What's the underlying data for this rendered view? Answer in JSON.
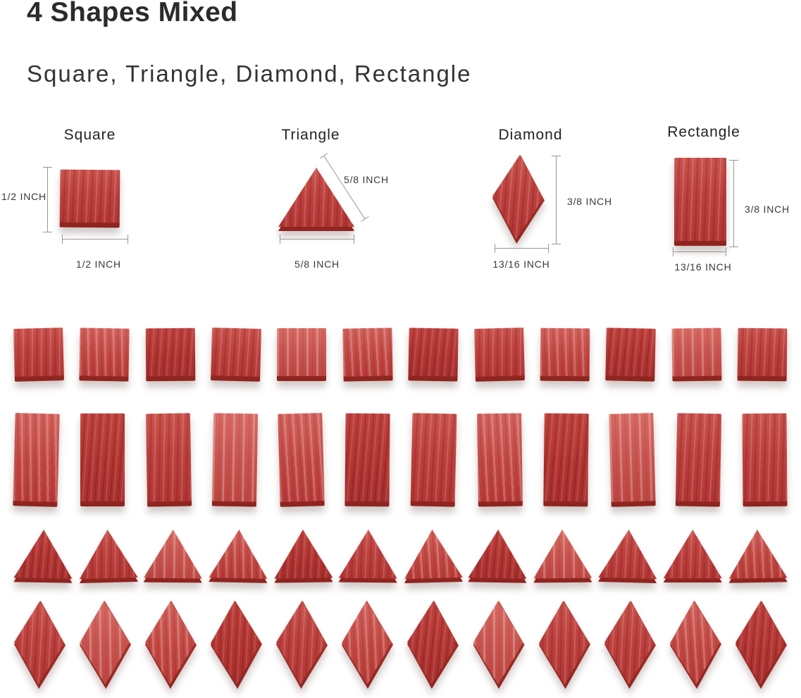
{
  "page": {
    "title": "4 Shapes Mixed",
    "subtitle": "Square, Triangle, Diamond, Rectangle"
  },
  "specs": [
    {
      "name": "Square",
      "side_label": "1/2 INCH",
      "bottom_label": "1/2 INCH"
    },
    {
      "name": "Triangle",
      "side_label": "5/8 INCH",
      "bottom_label": "5/8 INCH"
    },
    {
      "name": "Diamond",
      "side_label": "3/8 INCH",
      "bottom_label": "13/16 INCH"
    },
    {
      "name": "Rectangle",
      "side_label": "3/8 INCH",
      "bottom_label": "13/16 INCH"
    }
  ],
  "tile_rows": [
    {
      "shape": "square",
      "count": 12
    },
    {
      "shape": "rectangle",
      "count": 12
    },
    {
      "shape": "triangle",
      "count": 12
    },
    {
      "shape": "diamond",
      "count": 12
    }
  ],
  "colors": {
    "tile_red": "#c24440",
    "tile_edge_dark": "#9e2b27",
    "background": "#ffffff",
    "heading_text": "#2b2b2b",
    "dimension_line": "#979797"
  }
}
